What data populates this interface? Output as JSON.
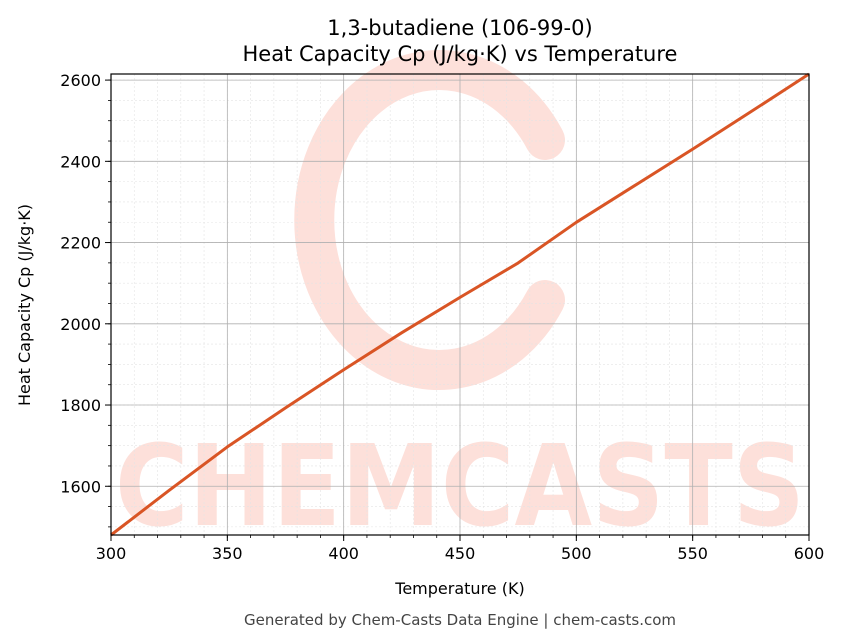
{
  "chart_data": {
    "type": "line",
    "title_line1": "1,3-butadiene (106-99-0)",
    "title_line2": "Heat Capacity Cp (J/kg·K) vs Temperature",
    "xlabel": "Temperature (K)",
    "ylabel": "Heat Capacity Cp (J/kg·K)",
    "xlim": [
      300,
      600
    ],
    "ylim": [
      1480,
      2615
    ],
    "x_ticks": [
      300,
      350,
      400,
      450,
      500,
      550,
      600
    ],
    "y_ticks": [
      1600,
      1800,
      2000,
      2200,
      2400,
      2600
    ],
    "grid": true,
    "series": [
      {
        "color": "#d95525",
        "x": [
          300,
          325,
          350,
          375,
          400,
          425,
          450,
          475,
          500,
          525,
          550,
          575,
          600
        ],
        "y": [
          1480,
          1590,
          1697,
          1793,
          1887,
          1978,
          2065,
          2150,
          2250,
          2340,
          2430,
          2522,
          2615
        ]
      }
    ]
  },
  "watermark": {
    "text": "CHEMCASTS",
    "color": "#fde0da"
  },
  "footer": "Generated by Chem-Casts Data Engine | chem-casts.com"
}
